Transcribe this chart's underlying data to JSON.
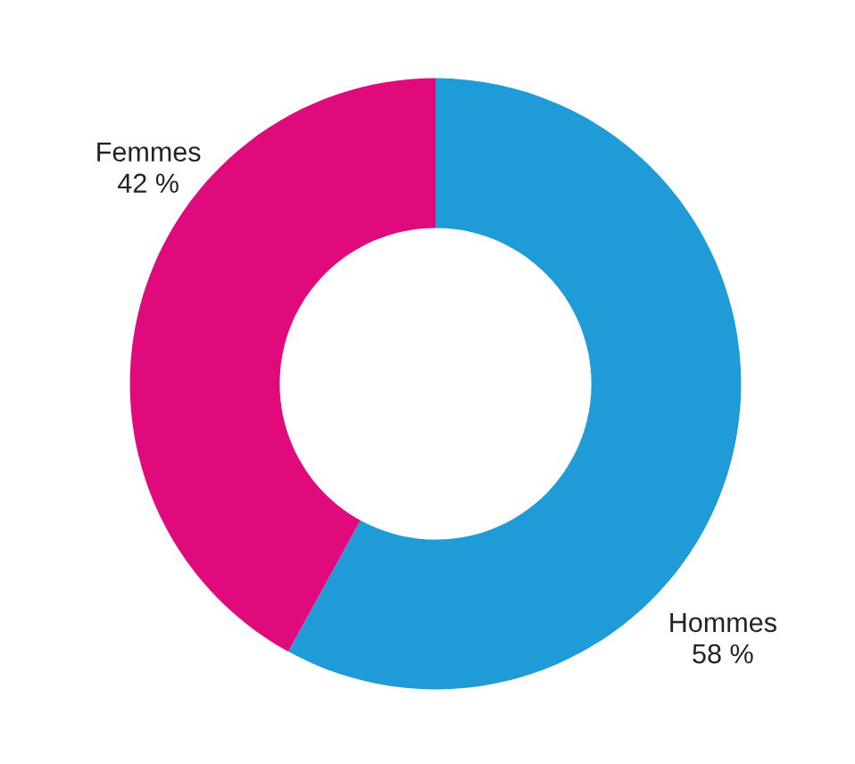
{
  "chart_data": {
    "type": "donut",
    "categories": [
      "Hommes",
      "Femmes"
    ],
    "values": [
      58,
      42
    ],
    "value_labels": [
      "58 %",
      "42 %"
    ],
    "colors": [
      "#1f9cd8",
      "#e00a7d"
    ],
    "legend": false
  }
}
